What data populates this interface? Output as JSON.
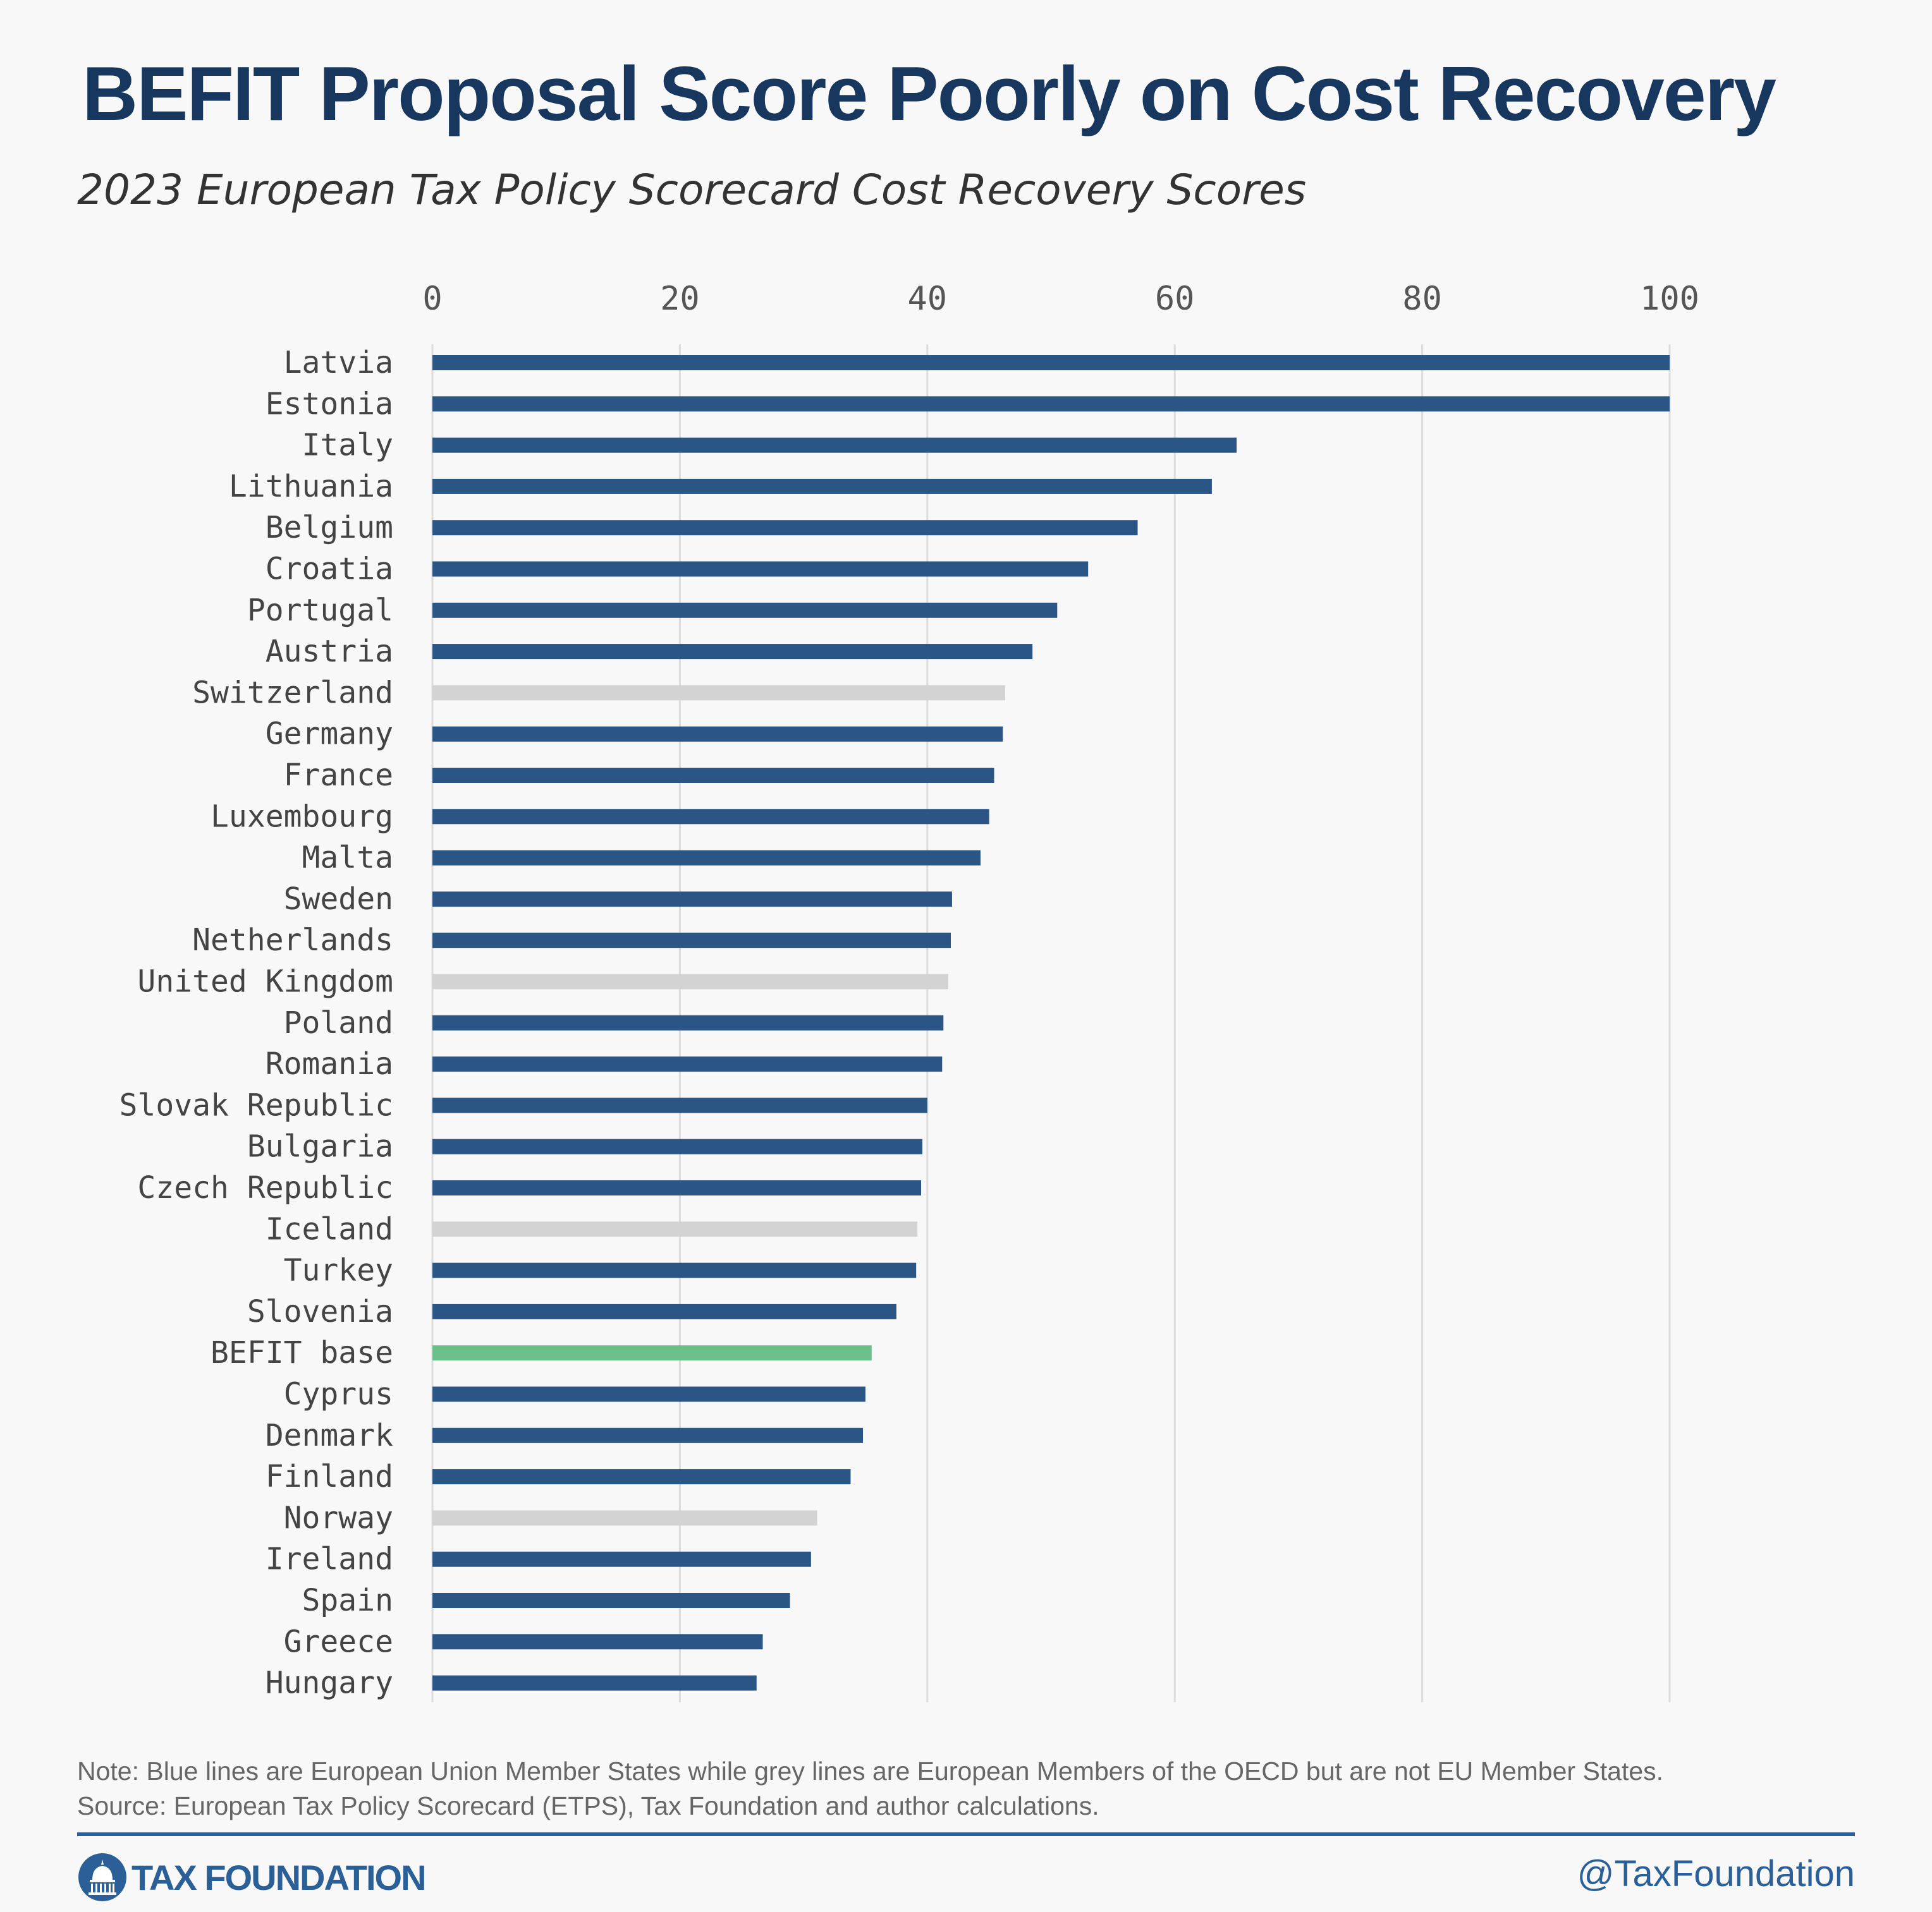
{
  "title": "BEFIT Proposal Score Poorly on Cost Recovery",
  "subtitle": "2023 European Tax Policy Scorecard Cost Recovery Scores",
  "note_line1": "Note: Blue lines are European Union Member States while grey lines are European Members of the OECD but are not EU Member States.",
  "note_line2": "Source: European Tax Policy Scorecard (ETPS), Tax Foundation and author calculations.",
  "brand": {
    "logo_text": "TAX FOUNDATION",
    "handle": "@TaxFoundation"
  },
  "colors": {
    "eu": "#2a5585",
    "non_eu": "#d3d3d3",
    "befit": "#6abf8a",
    "grid": "#dcdcdc",
    "title": "#17375e"
  },
  "chart_data": {
    "type": "bar",
    "orientation": "horizontal",
    "title": "BEFIT Proposal Score Poorly on Cost Recovery",
    "subtitle": "2023 European Tax Policy Scorecard Cost Recovery Scores",
    "xlim": [
      0,
      100
    ],
    "xticks": [
      0,
      20,
      40,
      60,
      80,
      100
    ],
    "x_axis_position": "top",
    "grid": true,
    "categories": [
      "Latvia",
      "Estonia",
      "Italy",
      "Lithuania",
      "Belgium",
      "Croatia",
      "Portugal",
      "Austria",
      "Switzerland",
      "Germany",
      "France",
      "Luxembourg",
      "Malta",
      "Sweden",
      "Netherlands",
      "United Kingdom",
      "Poland",
      "Romania",
      "Slovak Republic",
      "Bulgaria",
      "Czech Republic",
      "Iceland",
      "Turkey",
      "Slovenia",
      "BEFIT base",
      "Cyprus",
      "Denmark",
      "Finland",
      "Norway",
      "Ireland",
      "Spain",
      "Greece",
      "Hungary"
    ],
    "values": [
      100,
      100,
      65,
      63,
      57,
      53,
      50.5,
      48.5,
      46.3,
      46.1,
      45.4,
      45,
      44.3,
      42,
      41.9,
      41.7,
      41.3,
      41.2,
      40,
      39.6,
      39.5,
      39.2,
      39.1,
      37.5,
      35.5,
      35,
      34.8,
      33.8,
      31.1,
      30.6,
      28.9,
      26.7,
      26.2
    ],
    "groups": [
      "eu",
      "eu",
      "eu",
      "eu",
      "eu",
      "eu",
      "eu",
      "eu",
      "non_eu",
      "eu",
      "eu",
      "eu",
      "eu",
      "eu",
      "eu",
      "non_eu",
      "eu",
      "eu",
      "eu",
      "eu",
      "eu",
      "non_eu",
      "eu",
      "eu",
      "befit",
      "eu",
      "eu",
      "eu",
      "non_eu",
      "eu",
      "eu",
      "eu",
      "eu"
    ]
  }
}
